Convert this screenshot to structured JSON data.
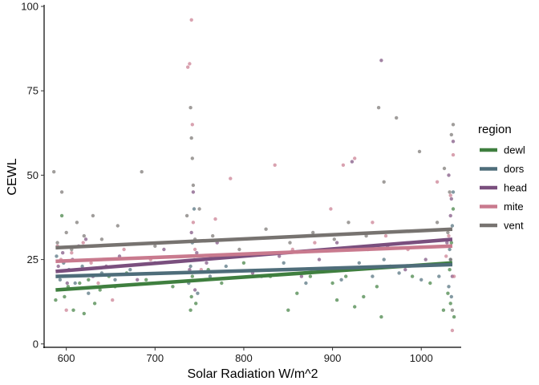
{
  "chart_data": {
    "type": "scatter",
    "title": "",
    "xlabel": "Solar Radiation W/m^2",
    "ylabel": "CEWL",
    "xlim": [
      575,
      1045
    ],
    "ylim": [
      -1,
      100
    ],
    "x_ticks": [
      600,
      700,
      800,
      900,
      1000
    ],
    "y_ticks": [
      0,
      25,
      50,
      75,
      100
    ],
    "grid": false,
    "legend": {
      "title": "region",
      "placement": "right",
      "entries": [
        {
          "name": "dewl",
          "color": "#3f7f3f"
        },
        {
          "name": "dors",
          "color": "#4e6d7a"
        },
        {
          "name": "head",
          "color": "#7a4f7e"
        },
        {
          "name": "mite",
          "color": "#c97a8e"
        },
        {
          "name": "vent",
          "color": "#777370"
        }
      ]
    },
    "series": [
      {
        "name": "dewl",
        "color": "#3f7f3f",
        "trend": [
          [
            588,
            16
          ],
          [
            1035,
            24
          ]
        ],
        "points": [
          [
            588,
            13
          ],
          [
            592,
            20
          ],
          [
            595,
            38
          ],
          [
            598,
            14
          ],
          [
            602,
            17
          ],
          [
            608,
            10
          ],
          [
            615,
            18
          ],
          [
            620,
            9
          ],
          [
            625,
            19
          ],
          [
            632,
            12
          ],
          [
            638,
            16
          ],
          [
            648,
            20
          ],
          [
            655,
            17
          ],
          [
            668,
            21
          ],
          [
            690,
            19
          ],
          [
            720,
            17
          ],
          [
            740,
            10
          ],
          [
            741,
            14
          ],
          [
            742,
            20
          ],
          [
            744,
            26
          ],
          [
            746,
            12
          ],
          [
            760,
            22
          ],
          [
            775,
            18
          ],
          [
            800,
            24
          ],
          [
            830,
            20
          ],
          [
            850,
            10
          ],
          [
            860,
            15
          ],
          [
            875,
            20
          ],
          [
            900,
            18
          ],
          [
            905,
            13
          ],
          [
            915,
            20
          ],
          [
            925,
            11
          ],
          [
            935,
            14
          ],
          [
            950,
            17
          ],
          [
            955,
            8
          ],
          [
            965,
            23
          ],
          [
            990,
            20
          ],
          [
            1010,
            18
          ],
          [
            1025,
            10
          ],
          [
            1030,
            15
          ],
          [
            1032,
            22
          ],
          [
            1034,
            30
          ],
          [
            1036,
            40
          ],
          [
            1033,
            12
          ],
          [
            1037,
            8
          ]
        ]
      },
      {
        "name": "dors",
        "color": "#4e6d7a",
        "trend": [
          [
            588,
            20
          ],
          [
            1035,
            23.5
          ]
        ],
        "points": [
          [
            589,
            26
          ],
          [
            593,
            19
          ],
          [
            597,
            24
          ],
          [
            603,
            22
          ],
          [
            610,
            18
          ],
          [
            618,
            23
          ],
          [
            625,
            15
          ],
          [
            640,
            21
          ],
          [
            655,
            19
          ],
          [
            672,
            22
          ],
          [
            700,
            24
          ],
          [
            738,
            18
          ],
          [
            740,
            23
          ],
          [
            742,
            30
          ],
          [
            744,
            40
          ],
          [
            748,
            15
          ],
          [
            762,
            20
          ],
          [
            780,
            23
          ],
          [
            820,
            20
          ],
          [
            845,
            24
          ],
          [
            870,
            18
          ],
          [
            890,
            22
          ],
          [
            910,
            19
          ],
          [
            930,
            24
          ],
          [
            945,
            20
          ],
          [
            958,
            25
          ],
          [
            975,
            21
          ],
          [
            1000,
            19
          ],
          [
            1020,
            20
          ],
          [
            1031,
            17
          ],
          [
            1033,
            25
          ],
          [
            1035,
            35
          ],
          [
            1036,
            45
          ],
          [
            1034,
            14
          ],
          [
            1032,
            28
          ]
        ]
      },
      {
        "name": "head",
        "color": "#7a4f7e",
        "trend": [
          [
            588,
            21.5
          ],
          [
            1035,
            31
          ]
        ],
        "points": [
          [
            591,
            23
          ],
          [
            596,
            27
          ],
          [
            601,
            18
          ],
          [
            607,
            25
          ],
          [
            614,
            29
          ],
          [
            622,
            31
          ],
          [
            630,
            20
          ],
          [
            645,
            23
          ],
          [
            660,
            26
          ],
          [
            680,
            19
          ],
          [
            710,
            28
          ],
          [
            739,
            22
          ],
          [
            741,
            33
          ],
          [
            743,
            45
          ],
          [
            745,
            16
          ],
          [
            747,
            27
          ],
          [
            758,
            24
          ],
          [
            770,
            30
          ],
          [
            810,
            21
          ],
          [
            840,
            26
          ],
          [
            865,
            20
          ],
          [
            885,
            25
          ],
          [
            905,
            30
          ],
          [
            922,
            54
          ],
          [
            940,
            28
          ],
          [
            955,
            84
          ],
          [
            962,
            29
          ],
          [
            982,
            22
          ],
          [
            1005,
            25
          ],
          [
            1029,
            30
          ],
          [
            1031,
            50
          ],
          [
            1033,
            38
          ],
          [
            1035,
            20
          ],
          [
            1036,
            60
          ],
          [
            1034,
            43
          ]
        ]
      },
      {
        "name": "mite",
        "color": "#c97a8e",
        "trend": [
          [
            588,
            24.5
          ],
          [
            1035,
            29
          ]
        ],
        "points": [
          [
            590,
            29
          ],
          [
            594,
            25
          ],
          [
            600,
            10
          ],
          [
            606,
            27
          ],
          [
            612,
            22
          ],
          [
            619,
            30
          ],
          [
            628,
            24
          ],
          [
            636,
            18
          ],
          [
            652,
            13
          ],
          [
            665,
            28
          ],
          [
            695,
            25
          ],
          [
            737,
            82
          ],
          [
            739,
            83
          ],
          [
            741,
            96
          ],
          [
            742,
            65
          ],
          [
            743,
            36
          ],
          [
            745,
            28
          ],
          [
            752,
            22
          ],
          [
            768,
            37
          ],
          [
            785,
            49
          ],
          [
            835,
            53
          ],
          [
            855,
            28
          ],
          [
            880,
            30
          ],
          [
            898,
            40
          ],
          [
            912,
            53
          ],
          [
            925,
            55
          ],
          [
            945,
            36
          ],
          [
            960,
            32
          ],
          [
            985,
            28
          ],
          [
            1018,
            48
          ],
          [
            1028,
            26
          ],
          [
            1031,
            32
          ],
          [
            1033,
            44
          ],
          [
            1035,
            4
          ],
          [
            1036,
            56
          ],
          [
            1037,
            20
          ]
        ]
      },
      {
        "name": "vent",
        "color": "#777370",
        "trend": [
          [
            588,
            28.5
          ],
          [
            1035,
            34
          ]
        ],
        "points": [
          [
            586,
            51
          ],
          [
            590,
            30
          ],
          [
            595,
            45
          ],
          [
            600,
            33
          ],
          [
            606,
            28
          ],
          [
            612,
            36
          ],
          [
            620,
            32
          ],
          [
            630,
            38
          ],
          [
            640,
            31
          ],
          [
            658,
            35
          ],
          [
            685,
            51
          ],
          [
            700,
            29
          ],
          [
            736,
            38
          ],
          [
            740,
            70
          ],
          [
            741,
            61
          ],
          [
            742,
            55
          ],
          [
            743,
            47
          ],
          [
            745,
            31
          ],
          [
            750,
            40
          ],
          [
            765,
            32
          ],
          [
            795,
            28
          ],
          [
            825,
            34
          ],
          [
            852,
            30
          ],
          [
            878,
            33
          ],
          [
            902,
            31
          ],
          [
            918,
            36
          ],
          [
            938,
            32
          ],
          [
            952,
            70
          ],
          [
            958,
            48
          ],
          [
            972,
            67
          ],
          [
            998,
            57
          ],
          [
            1018,
            36
          ],
          [
            1026,
            52
          ],
          [
            1030,
            33
          ],
          [
            1032,
            45
          ],
          [
            1034,
            62
          ],
          [
            1036,
            65
          ],
          [
            1033,
            25
          ],
          [
            1035,
            10
          ]
        ]
      }
    ]
  }
}
